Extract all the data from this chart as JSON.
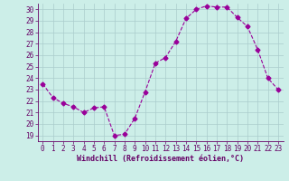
{
  "x": [
    0,
    1,
    2,
    3,
    4,
    5,
    6,
    7,
    8,
    9,
    10,
    11,
    12,
    13,
    14,
    15,
    16,
    17,
    18,
    19,
    20,
    21,
    22,
    23
  ],
  "y": [
    23.5,
    22.3,
    21.8,
    21.5,
    21.0,
    21.4,
    21.5,
    19.0,
    19.1,
    20.5,
    22.8,
    25.3,
    25.8,
    27.2,
    29.2,
    30.0,
    30.3,
    30.2,
    30.2,
    29.3,
    28.5,
    26.5,
    24.0,
    23.0
  ],
  "line_color": "#990099",
  "marker": "D",
  "marker_size": 2.5,
  "xlabel": "Windchill (Refroidissement éolien,°C)",
  "xlim": [
    -0.5,
    23.5
  ],
  "ylim": [
    18.5,
    30.5
  ],
  "yticks": [
    19,
    20,
    21,
    22,
    23,
    24,
    25,
    26,
    27,
    28,
    29,
    30
  ],
  "xticks": [
    0,
    1,
    2,
    3,
    4,
    5,
    6,
    7,
    8,
    9,
    10,
    11,
    12,
    13,
    14,
    15,
    16,
    17,
    18,
    19,
    20,
    21,
    22,
    23
  ],
  "bg_color": "#cceee8",
  "grid_color": "#aacccc",
  "font_color": "#660066",
  "tick_fontsize": 5.5,
  "xlabel_fontsize": 6.0
}
